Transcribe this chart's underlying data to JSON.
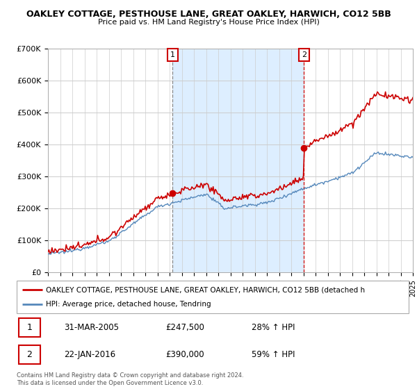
{
  "title": "OAKLEY COTTAGE, PESTHOUSE LANE, GREAT OAKLEY, HARWICH, CO12 5BB",
  "subtitle": "Price paid vs. HM Land Registry's House Price Index (HPI)",
  "legend_line1": "OAKLEY COTTAGE, PESTHOUSE LANE, GREAT OAKLEY, HARWICH, CO12 5BB (detached h",
  "legend_line2": "HPI: Average price, detached house, Tendring",
  "footnote": "Contains HM Land Registry data © Crown copyright and database right 2024.\nThis data is licensed under the Open Government Licence v3.0.",
  "annotation1_label": "1",
  "annotation1_date": "31-MAR-2005",
  "annotation1_price": "£247,500",
  "annotation1_hpi": "28% ↑ HPI",
  "annotation2_label": "2",
  "annotation2_date": "22-JAN-2016",
  "annotation2_price": "£390,000",
  "annotation2_hpi": "59% ↑ HPI",
  "house_color": "#cc0000",
  "hpi_color": "#5588bb",
  "shade_color": "#ddeeff",
  "ylim": [
    0,
    700000
  ],
  "yticks": [
    0,
    100000,
    200000,
    300000,
    400000,
    500000,
    600000,
    700000
  ],
  "ytick_labels": [
    "£0",
    "£100K",
    "£200K",
    "£300K",
    "£400K",
    "£500K",
    "£600K",
    "£700K"
  ],
  "x_start_year": 1995,
  "x_end_year": 2025,
  "sale1_year": 2005.25,
  "sale1_value": 247500,
  "sale2_year": 2016.05,
  "sale2_value": 390000,
  "vline1_year": 2005.25,
  "vline2_year": 2016.05
}
